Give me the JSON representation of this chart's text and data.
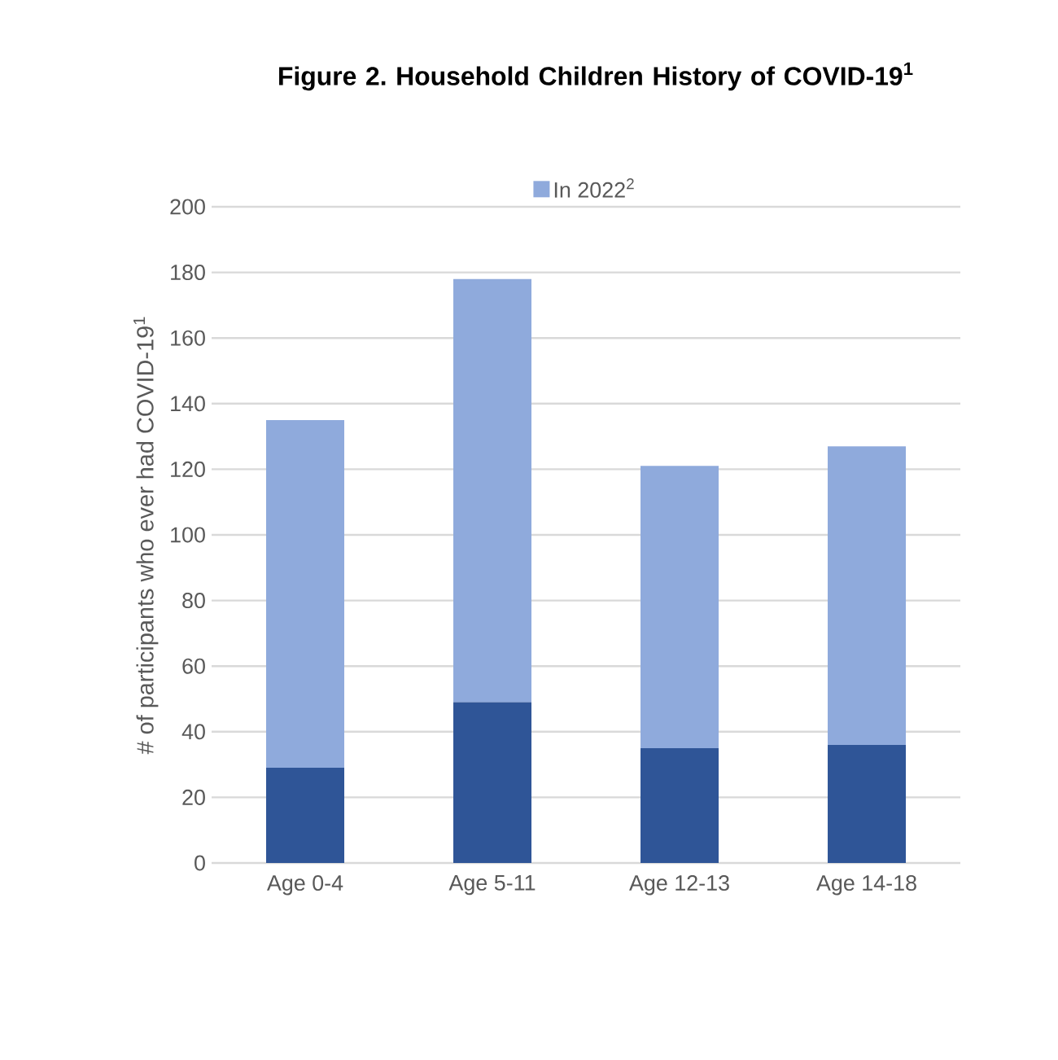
{
  "chart_data": {
    "type": "bar",
    "title": "Figure 2. Household Children History of COVID-19$^{1}$",
    "ylabel": "# of participants who ever had COVID-19$^{1}$",
    "categories": [
      "Age 0-4",
      "Age 5-11",
      "Age 12-13",
      "Age 14-18"
    ],
    "stacked": true,
    "series": [
      {
        "color": "#2f5597",
        "values": [
          29,
          49,
          35,
          36
        ]
      },
      {
        "name": "In 2022$^{2}$",
        "color": "#8faadc",
        "values": [
          106,
          129,
          86,
          91
        ]
      }
    ],
    "ylim": [
      0,
      200
    ],
    "yticks": [
      0,
      20,
      40,
      60,
      80,
      100,
      120,
      140,
      160,
      180,
      200
    ],
    "grid": "y",
    "legend": "top"
  }
}
